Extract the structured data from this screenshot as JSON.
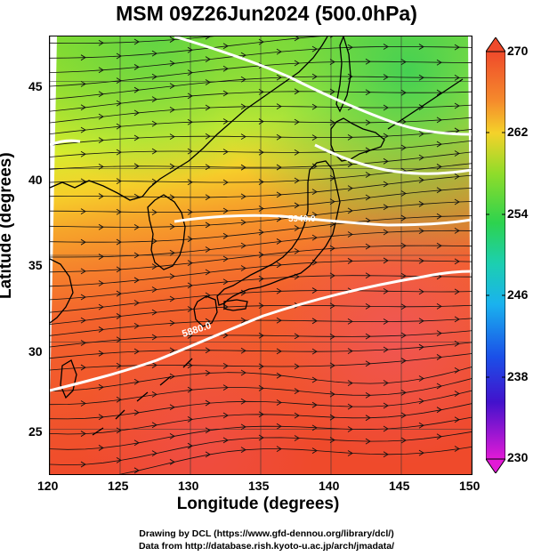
{
  "title": "MSM 09Z26Jun2024 (500.0hPa)",
  "chart_data": {
    "type": "map",
    "xlabel": "Longitude (degrees)",
    "ylabel": "Latitude  (degrees)",
    "xlim": [
      120,
      150
    ],
    "ylim": [
      22.4,
      47.6
    ],
    "x_ticks": [
      "120",
      "125",
      "130",
      "135",
      "140",
      "145",
      "150"
    ],
    "y_ticks": [
      "25",
      "30",
      "35",
      "40",
      "45"
    ],
    "colorbar": {
      "min": 230,
      "max": 270,
      "labels": [
        "270",
        "262",
        "254",
        "246",
        "238",
        "230"
      ]
    },
    "contour_labels": [
      "5880.0",
      "5940.0"
    ]
  },
  "credits": {
    "line1": "Drawing by DCL (https://www.gfd-dennou.org/library/dcl/)",
    "line2": "Data from http://database.rish.kyoto-u.ac.jp/arch/jmadata/"
  }
}
